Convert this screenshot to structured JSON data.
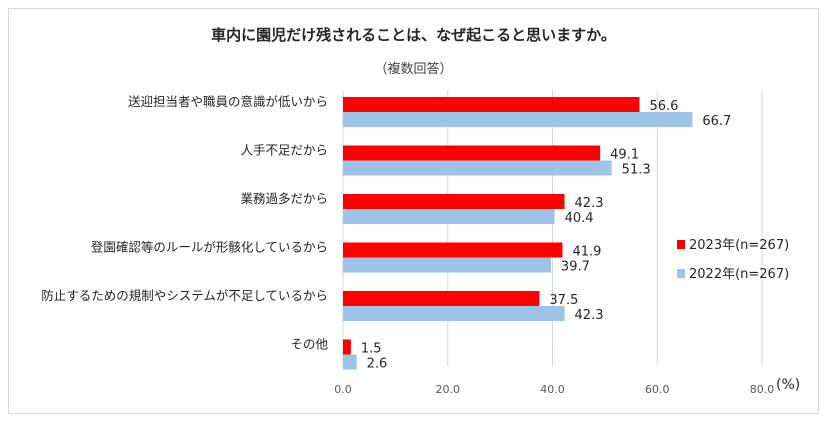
{
  "title": "車内に園児だけ残されることは、なぜ起こると思いますか。",
  "subtitle": "（複数回答）",
  "chart_data": {
    "type": "bar",
    "orientation": "horizontal",
    "title": "車内に園児だけ残されることは、なぜ起こると思いますか。",
    "subtitle": "（複数回答）",
    "categories": [
      "送迎担当者や職員の意識が低いから",
      "人手不足だから",
      "業務過多だから",
      "登園確認等のルールが形骸化しているから",
      "防止するための規制やシステムが不足しているから",
      "その他"
    ],
    "series": [
      {
        "name": "2023年(n=267)",
        "color": "#ff0000",
        "values": [
          56.6,
          49.1,
          42.3,
          41.9,
          37.5,
          1.5
        ],
        "labels": [
          "56.6",
          "49.1",
          "42.3",
          "41.9",
          "37.5",
          "1.5"
        ]
      },
      {
        "name": "2022年(n=267)",
        "color": "#9dc3e6",
        "values": [
          66.7,
          51.3,
          40.4,
          39.7,
          42.3,
          2.6
        ],
        "labels": [
          "66.7",
          "51.3",
          "40.4",
          "39.7",
          "42.3",
          "2.6"
        ]
      }
    ],
    "xlim": [
      0,
      80
    ],
    "ticks": [
      "0.0",
      "20.0",
      "40.0",
      "60.0",
      "80.0"
    ],
    "tick_values": [
      0,
      20,
      40,
      60,
      80
    ],
    "unit": "(%)",
    "grid": true,
    "legend_position": "right"
  }
}
